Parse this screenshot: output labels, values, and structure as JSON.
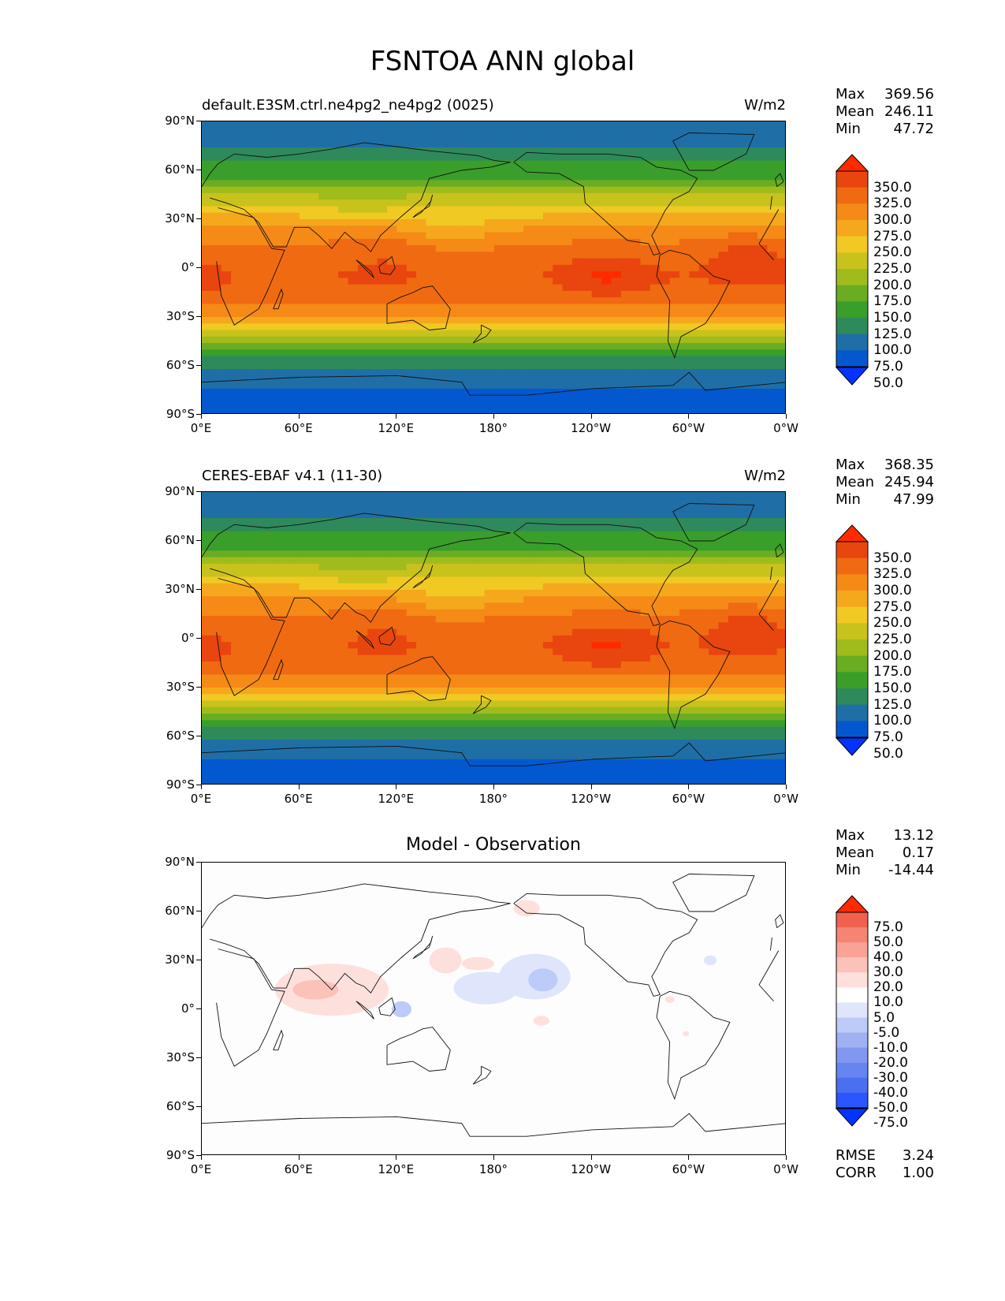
{
  "figure_title": "FSNTOA ANN global",
  "lat_ticks": [
    "90°N",
    "60°N",
    "30°N",
    "0°",
    "30°S",
    "60°S",
    "90°S"
  ],
  "lon_ticks": [
    "0°E",
    "60°E",
    "120°E",
    "180°",
    "120°W",
    "60°W",
    "0°W"
  ],
  "panels": [
    {
      "title_left": "default.E3SM.ctrl.ne4pg2_ne4pg2 (0025)",
      "units": "W/m2",
      "stats": [
        {
          "label": "Max",
          "value": "369.56"
        },
        {
          "label": "Mean",
          "value": "246.11"
        },
        {
          "label": "Min",
          "value": "47.72"
        }
      ],
      "colorbar_labels": [
        "350.0",
        "325.0",
        "300.0",
        "275.0",
        "250.0",
        "225.0",
        "200.0",
        "175.0",
        "150.0",
        "125.0",
        "100.0",
        "75.0",
        "50.0"
      ]
    },
    {
      "title_left": "CERES-EBAF v4.1 (11-30)",
      "units": "W/m2",
      "stats": [
        {
          "label": "Max",
          "value": "368.35"
        },
        {
          "label": "Mean",
          "value": "245.94"
        },
        {
          "label": "Min",
          "value": "47.99"
        }
      ],
      "colorbar_labels": [
        "350.0",
        "325.0",
        "300.0",
        "275.0",
        "250.0",
        "225.0",
        "200.0",
        "175.0",
        "150.0",
        "125.0",
        "100.0",
        "75.0",
        "50.0"
      ]
    },
    {
      "title_center": "Model - Observation",
      "stats": [
        {
          "label": "Max",
          "value": "13.12"
        },
        {
          "label": "Mean",
          "value": "0.17"
        },
        {
          "label": "Min",
          "value": "-14.44"
        }
      ],
      "colorbar_labels": [
        "75.0",
        "50.0",
        "40.0",
        "30.0",
        "20.0",
        "10.0",
        "5.0",
        "-5.0",
        "-10.0",
        "-20.0",
        "-30.0",
        "-40.0",
        "-50.0",
        "-75.0"
      ],
      "metrics": [
        {
          "label": "RMSE",
          "value": "3.24"
        },
        {
          "label": "CORR",
          "value": "1.00"
        }
      ]
    }
  ],
  "chart_data": [
    {
      "type": "heatmap",
      "title": "default.E3SM.ctrl.ne4pg2_ne4pg2 (0025)",
      "units": "W/m2",
      "xlim": [
        0,
        360
      ],
      "ylim": [
        -90,
        90
      ],
      "zonal_mean_profile": {
        "lat": [
          -85,
          -75,
          -65,
          -55,
          -45,
          -35,
          -25,
          -15,
          -5,
          5,
          15,
          25,
          35,
          45,
          55,
          65,
          75,
          85
        ],
        "value": [
          50,
          75,
          90,
          125,
          175,
          240,
          290,
          310,
          320,
          310,
          300,
          275,
          240,
          200,
          150,
          125,
          100,
          75
        ]
      },
      "levels": [
        50,
        75,
        100,
        125,
        150,
        175,
        200,
        225,
        250,
        275,
        300,
        325,
        350
      ],
      "stats": {
        "max": 369.56,
        "mean": 246.11,
        "min": 47.72
      }
    },
    {
      "type": "heatmap",
      "title": "CERES-EBAF v4.1 (11-30)",
      "units": "W/m2",
      "xlim": [
        0,
        360
      ],
      "ylim": [
        -90,
        90
      ],
      "zonal_mean_profile": {
        "lat": [
          -85,
          -75,
          -65,
          -55,
          -45,
          -35,
          -25,
          -15,
          -5,
          5,
          15,
          25,
          35,
          45,
          55,
          65,
          75,
          85
        ],
        "value": [
          50,
          75,
          90,
          125,
          175,
          240,
          290,
          310,
          318,
          312,
          300,
          275,
          240,
          200,
          150,
          125,
          100,
          75
        ]
      },
      "levels": [
        50,
        75,
        100,
        125,
        150,
        175,
        200,
        225,
        250,
        275,
        300,
        325,
        350
      ],
      "stats": {
        "max": 368.35,
        "mean": 245.94,
        "min": 47.99
      }
    },
    {
      "type": "heatmap",
      "title": "Model - Observation",
      "xlim": [
        0,
        360
      ],
      "ylim": [
        -90,
        90
      ],
      "levels": [
        -75,
        -50,
        -40,
        -30,
        -20,
        -10,
        -5,
        5,
        10,
        20,
        30,
        40,
        50,
        75
      ],
      "stats": {
        "max": 13.12,
        "mean": 0.17,
        "min": -14.44
      },
      "rmse": 3.24,
      "corr": 1.0
    }
  ],
  "colors": {
    "field": [
      "#0433ff",
      "#0358d0",
      "#1f6fa6",
      "#2e8a5a",
      "#3a9e2b",
      "#6aad22",
      "#9fbc1c",
      "#c8c21c",
      "#f0c923",
      "#f5a81c",
      "#f58a17",
      "#f06a12",
      "#e8460e",
      "#ff2a00"
    ],
    "diff": [
      "#0433ff",
      "#2a55ff",
      "#4a6ff0",
      "#6685f0",
      "#8298f0",
      "#9fb0f3",
      "#bccbf7",
      "#dfe6fb",
      "#ffffff",
      "#fde0dc",
      "#fbc2ba",
      "#f9a396",
      "#f58473",
      "#f0624f",
      "#ff2a00"
    ]
  }
}
